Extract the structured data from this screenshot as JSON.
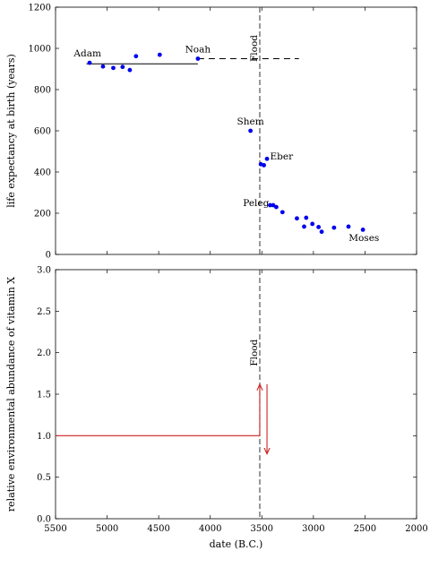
{
  "chart_data": [
    {
      "type": "scatter",
      "panel": "top",
      "xlabel": "",
      "ylabel": "life expectancy at birth (years)",
      "xlim": [
        5500,
        2000
      ],
      "ylim": [
        0,
        1200
      ],
      "x_ticks": [
        5500,
        5000,
        4500,
        4000,
        3500,
        3000,
        2500,
        2000
      ],
      "y_ticks": [
        0,
        200,
        400,
        600,
        800,
        1000,
        1200
      ],
      "point_color": "#0000ee",
      "points": [
        {
          "x": 5170,
          "y": 930
        },
        {
          "x": 5040,
          "y": 912
        },
        {
          "x": 4940,
          "y": 905
        },
        {
          "x": 4850,
          "y": 910
        },
        {
          "x": 4780,
          "y": 895
        },
        {
          "x": 4720,
          "y": 962
        },
        {
          "x": 4490,
          "y": 969
        },
        {
          "x": 4120,
          "y": 950
        },
        {
          "x": 3610,
          "y": 600
        },
        {
          "x": 3510,
          "y": 438
        },
        {
          "x": 3480,
          "y": 433
        },
        {
          "x": 3450,
          "y": 464
        },
        {
          "x": 3420,
          "y": 239
        },
        {
          "x": 3390,
          "y": 239
        },
        {
          "x": 3360,
          "y": 230
        },
        {
          "x": 3300,
          "y": 205
        },
        {
          "x": 3160,
          "y": 175
        },
        {
          "x": 3090,
          "y": 135
        },
        {
          "x": 3070,
          "y": 178
        },
        {
          "x": 3010,
          "y": 148
        },
        {
          "x": 2950,
          "y": 133
        },
        {
          "x": 2920,
          "y": 110
        },
        {
          "x": 2800,
          "y": 130
        },
        {
          "x": 2660,
          "y": 135
        },
        {
          "x": 2520,
          "y": 120
        }
      ],
      "reference_lines": [
        {
          "style": "solid",
          "x": [
            5200,
            4120
          ],
          "y": [
            925,
            925
          ]
        },
        {
          "style": "dashed",
          "x": [
            4120,
            3140
          ],
          "y": [
            950,
            950
          ]
        }
      ],
      "annotations": [
        {
          "label": "Adam",
          "x": 5190,
          "y": 960,
          "anchor": "middle"
        },
        {
          "label": "Noah",
          "x": 4120,
          "y": 980,
          "anchor": "middle"
        },
        {
          "label": "Shem",
          "x": 3610,
          "y": 630,
          "anchor": "middle"
        },
        {
          "label": "Eber",
          "x": 3420,
          "y": 460,
          "anchor": "start"
        },
        {
          "label": "Peleg",
          "x": 3430,
          "y": 235,
          "anchor": "end"
        },
        {
          "label": "Moses",
          "x": 2510,
          "y": 65,
          "anchor": "middle"
        }
      ],
      "flood": {
        "x": 3520,
        "label": "Flood"
      }
    },
    {
      "type": "line",
      "panel": "bottom",
      "xlabel": "date (B.C.)",
      "ylabel": "relative environmental abundance of vitamin X",
      "xlim": [
        5500,
        2000
      ],
      "ylim": [
        0,
        3
      ],
      "x_ticks": [
        5500,
        5000,
        4500,
        4000,
        3500,
        3000,
        2500,
        2000
      ],
      "y_ticks": [
        "0.0",
        "0.5",
        "1.0",
        "1.5",
        "2.0",
        "2.5",
        "3.0"
      ],
      "line_color": "#cc2222",
      "series": [
        {
          "x": [
            5500,
            3520
          ],
          "y": [
            1.0,
            1.0
          ]
        }
      ],
      "arrows": [
        {
          "x": 3520,
          "y_from": 1.0,
          "y_to": 1.62,
          "direction": "up"
        },
        {
          "x": 3450,
          "y_from": 1.62,
          "y_to": 0.78,
          "direction": "down"
        }
      ],
      "flood": {
        "x": 3520,
        "label": "Flood"
      }
    }
  ]
}
